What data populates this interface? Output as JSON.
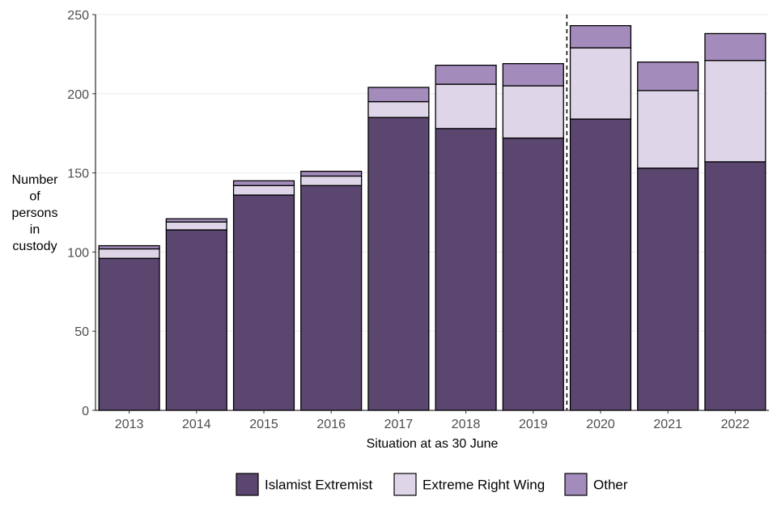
{
  "chart_data": {
    "type": "bar",
    "stacked": true,
    "categories": [
      "2013",
      "2014",
      "2015",
      "2016",
      "2017",
      "2018",
      "2019",
      "2020",
      "2021",
      "2022"
    ],
    "series": [
      {
        "name": "Islamist Extremist",
        "color": "#5b4670",
        "values": [
          96,
          114,
          136,
          142,
          185,
          178,
          172,
          184,
          153,
          157
        ]
      },
      {
        "name": "Extreme Right Wing",
        "color": "#ded6e8",
        "values": [
          6,
          5,
          6,
          6,
          10,
          28,
          33,
          45,
          49,
          64
        ]
      },
      {
        "name": "Other",
        "color": "#a38bbb",
        "values": [
          2,
          2,
          3,
          3,
          9,
          12,
          14,
          14,
          18,
          17
        ]
      }
    ],
    "title": "",
    "xlabel": "Situation at as 30 June",
    "ylabel_lines": [
      "Number",
      "of",
      "persons",
      "in",
      "custody"
    ],
    "ylim": [
      0,
      250
    ],
    "yticks": [
      0,
      50,
      100,
      150,
      200,
      250
    ],
    "grid": "horizontal",
    "reference_line": {
      "between": [
        "2019",
        "2020"
      ],
      "style": "dashed"
    },
    "legend_position": "bottom"
  }
}
